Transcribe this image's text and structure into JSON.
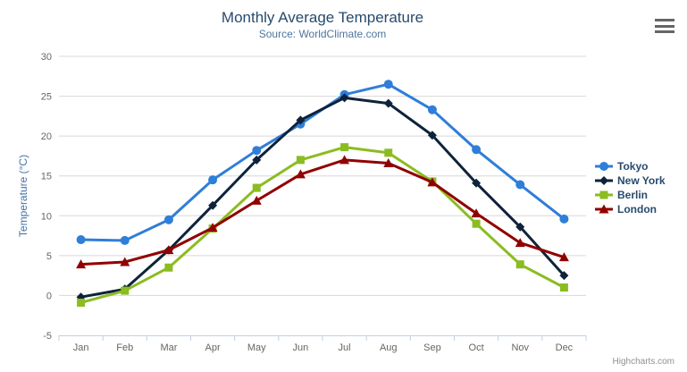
{
  "chart_data": {
    "type": "line",
    "title": "Monthly Average Temperature",
    "subtitle": "Source: WorldClimate.com",
    "xlabel": "",
    "ylabel": "Temperature (°C)",
    "categories": [
      "Jan",
      "Feb",
      "Mar",
      "Apr",
      "May",
      "Jun",
      "Jul",
      "Aug",
      "Sep",
      "Oct",
      "Nov",
      "Dec"
    ],
    "ylim": [
      -5,
      30
    ],
    "yticks": [
      -5,
      0,
      5,
      10,
      15,
      20,
      25,
      30
    ],
    "grid": true,
    "legend_position": "right",
    "series": [
      {
        "name": "Tokyo",
        "color": "#2f7ed8",
        "marker": "circle",
        "values": [
          7.0,
          6.9,
          9.5,
          14.5,
          18.2,
          21.5,
          25.2,
          26.5,
          23.3,
          18.3,
          13.9,
          9.6
        ]
      },
      {
        "name": "New York",
        "color": "#0d233a",
        "marker": "diamond",
        "values": [
          -0.2,
          0.8,
          5.7,
          11.3,
          17.0,
          22.0,
          24.8,
          24.1,
          20.1,
          14.1,
          8.6,
          2.5
        ]
      },
      {
        "name": "Berlin",
        "color": "#8bbc21",
        "marker": "square",
        "values": [
          -0.9,
          0.6,
          3.5,
          8.4,
          13.5,
          17.0,
          18.6,
          17.9,
          14.3,
          9.0,
          3.9,
          1.0
        ]
      },
      {
        "name": "London",
        "color": "#910000",
        "marker": "triangle",
        "values": [
          3.9,
          4.2,
          5.7,
          8.5,
          11.9,
          15.2,
          17.0,
          16.6,
          14.2,
          10.3,
          6.6,
          4.8
        ]
      }
    ],
    "credits": "Highcharts.com"
  },
  "colors": {
    "title": "#274b6d",
    "subtitle": "#4d759e",
    "axis_labels": "#666666",
    "y_axis_title": "#4572a7",
    "gridline": "#d8d8d8",
    "axis_line": "#c0d0e0",
    "legend_text": "#274b6d",
    "credits": "#909090",
    "menu_icon": "#666666"
  },
  "icons": {
    "context_menu": "hamburger-icon"
  }
}
